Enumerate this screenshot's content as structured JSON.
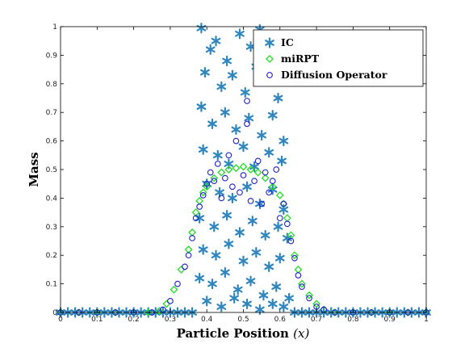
{
  "chart_data": {
    "type": "scatter",
    "title": "",
    "xlabel": "Particle Position",
    "xlabel_var": "(x)",
    "ylabel": "Mass",
    "xlim": [
      0,
      1
    ],
    "ylim": [
      0,
      1
    ],
    "xticks": [
      "0",
      "0.1",
      "0.2",
      "0.3",
      "0.4",
      "0.5",
      "0.6",
      "0.7",
      "0.8",
      "0.9",
      "1"
    ],
    "yticks": [
      "0",
      "0.1",
      "0.2",
      "0.3",
      "0.4",
      "0.5",
      "0.6",
      "0.7",
      "0.8",
      "0.9",
      "1"
    ],
    "grid": false,
    "legend_position": "top-right",
    "series": [
      {
        "name": "IC",
        "marker": "asterisk",
        "color": "#2f86bf",
        "points": [
          [
            0.0,
            0.0
          ],
          [
            0.02,
            0.0
          ],
          [
            0.04,
            0.0
          ],
          [
            0.06,
            0.0
          ],
          [
            0.08,
            0.0
          ],
          [
            0.1,
            0.0
          ],
          [
            0.12,
            0.0
          ],
          [
            0.14,
            0.0
          ],
          [
            0.16,
            0.0
          ],
          [
            0.18,
            0.0
          ],
          [
            0.2,
            0.0
          ],
          [
            0.22,
            0.0
          ],
          [
            0.24,
            0.0
          ],
          [
            0.26,
            0.0
          ],
          [
            0.28,
            0.0
          ],
          [
            0.3,
            0.0
          ],
          [
            0.32,
            0.0
          ],
          [
            0.34,
            0.0
          ],
          [
            0.36,
            0.0
          ],
          [
            0.64,
            0.0
          ],
          [
            0.66,
            0.0
          ],
          [
            0.68,
            0.0
          ],
          [
            0.7,
            0.0
          ],
          [
            0.72,
            0.0
          ],
          [
            0.74,
            0.0
          ],
          [
            0.76,
            0.0
          ],
          [
            0.78,
            0.0
          ],
          [
            0.8,
            0.0
          ],
          [
            0.82,
            0.0
          ],
          [
            0.84,
            0.0
          ],
          [
            0.86,
            0.0
          ],
          [
            0.88,
            0.0
          ],
          [
            0.9,
            0.0
          ],
          [
            0.92,
            0.0
          ],
          [
            0.94,
            0.0
          ],
          [
            0.96,
            0.0
          ],
          [
            0.98,
            0.0
          ],
          [
            1.0,
            0.0
          ],
          [
            0.385,
            0.995
          ],
          [
            0.41,
            0.92
          ],
          [
            0.425,
            0.95
          ],
          [
            0.455,
            0.88
          ],
          [
            0.49,
            0.975
          ],
          [
            0.52,
            0.93
          ],
          [
            0.545,
            0.99
          ],
          [
            0.575,
            0.91
          ],
          [
            0.6,
            0.97
          ],
          [
            0.395,
            0.84
          ],
          [
            0.44,
            0.79
          ],
          [
            0.47,
            0.83
          ],
          [
            0.505,
            0.77
          ],
          [
            0.535,
            0.86
          ],
          [
            0.565,
            0.81
          ],
          [
            0.595,
            0.75
          ],
          [
            0.385,
            0.72
          ],
          [
            0.415,
            0.66
          ],
          [
            0.45,
            0.7
          ],
          [
            0.48,
            0.64
          ],
          [
            0.515,
            0.68
          ],
          [
            0.55,
            0.62
          ],
          [
            0.58,
            0.69
          ],
          [
            0.61,
            0.6
          ],
          [
            0.39,
            0.57
          ],
          [
            0.43,
            0.55
          ],
          [
            0.46,
            0.52
          ],
          [
            0.5,
            0.58
          ],
          [
            0.53,
            0.51
          ],
          [
            0.57,
            0.56
          ],
          [
            0.605,
            0.53
          ],
          [
            0.4,
            0.45
          ],
          [
            0.435,
            0.42
          ],
          [
            0.47,
            0.4
          ],
          [
            0.51,
            0.44
          ],
          [
            0.545,
            0.38
          ],
          [
            0.58,
            0.43
          ],
          [
            0.61,
            0.36
          ],
          [
            0.38,
            0.33
          ],
          [
            0.42,
            0.3
          ],
          [
            0.455,
            0.34
          ],
          [
            0.49,
            0.28
          ],
          [
            0.525,
            0.32
          ],
          [
            0.56,
            0.27
          ],
          [
            0.595,
            0.3
          ],
          [
            0.62,
            0.26
          ],
          [
            0.39,
            0.22
          ],
          [
            0.425,
            0.2
          ],
          [
            0.46,
            0.24
          ],
          [
            0.5,
            0.18
          ],
          [
            0.535,
            0.21
          ],
          [
            0.57,
            0.16
          ],
          [
            0.6,
            0.19
          ],
          [
            0.38,
            0.12
          ],
          [
            0.415,
            0.1
          ],
          [
            0.45,
            0.14
          ],
          [
            0.485,
            0.08
          ],
          [
            0.52,
            0.11
          ],
          [
            0.555,
            0.06
          ],
          [
            0.59,
            0.09
          ],
          [
            0.625,
            0.05
          ],
          [
            0.4,
            0.04
          ],
          [
            0.44,
            0.02
          ],
          [
            0.475,
            0.05
          ],
          [
            0.51,
            0.03
          ],
          [
            0.545,
            0.01
          ],
          [
            0.58,
            0.03
          ],
          [
            0.61,
            0.02
          ]
        ]
      },
      {
        "name": "miRPT",
        "marker": "diamond",
        "color": "#22dd22",
        "points": [
          [
            0.0,
            0.0
          ],
          [
            0.05,
            0.0
          ],
          [
            0.1,
            0.0
          ],
          [
            0.15,
            0.0
          ],
          [
            0.2,
            0.0
          ],
          [
            0.24,
            0.0
          ],
          [
            0.27,
            0.005
          ],
          [
            0.29,
            0.03
          ],
          [
            0.31,
            0.08
          ],
          [
            0.33,
            0.15
          ],
          [
            0.35,
            0.22
          ],
          [
            0.36,
            0.28
          ],
          [
            0.37,
            0.35
          ],
          [
            0.38,
            0.39
          ],
          [
            0.39,
            0.42
          ],
          [
            0.4,
            0.44
          ],
          [
            0.42,
            0.47
          ],
          [
            0.44,
            0.49
          ],
          [
            0.46,
            0.5
          ],
          [
            0.48,
            0.505
          ],
          [
            0.5,
            0.51
          ],
          [
            0.52,
            0.5
          ],
          [
            0.54,
            0.49
          ],
          [
            0.56,
            0.47
          ],
          [
            0.58,
            0.44
          ],
          [
            0.6,
            0.41
          ],
          [
            0.61,
            0.38
          ],
          [
            0.62,
            0.33
          ],
          [
            0.63,
            0.27
          ],
          [
            0.64,
            0.2
          ],
          [
            0.65,
            0.15
          ],
          [
            0.66,
            0.1
          ],
          [
            0.68,
            0.06
          ],
          [
            0.7,
            0.03
          ],
          [
            0.72,
            0.01
          ],
          [
            0.75,
            0.0
          ],
          [
            0.8,
            0.0
          ],
          [
            0.85,
            0.0
          ],
          [
            0.9,
            0.0
          ],
          [
            0.95,
            0.0
          ],
          [
            1.0,
            0.0
          ]
        ]
      },
      {
        "name": "Diffusion Operator",
        "marker": "circle",
        "color": "#1f1fcc",
        "points": [
          [
            0.0,
            0.0
          ],
          [
            0.05,
            0.0
          ],
          [
            0.1,
            0.0
          ],
          [
            0.15,
            0.0
          ],
          [
            0.2,
            0.0
          ],
          [
            0.25,
            0.0
          ],
          [
            0.28,
            0.01
          ],
          [
            0.3,
            0.04
          ],
          [
            0.32,
            0.1
          ],
          [
            0.34,
            0.16
          ],
          [
            0.35,
            0.2
          ],
          [
            0.36,
            0.26
          ],
          [
            0.37,
            0.33
          ],
          [
            0.38,
            0.37
          ],
          [
            0.39,
            0.41
          ],
          [
            0.4,
            0.45
          ],
          [
            0.41,
            0.49
          ],
          [
            0.42,
            0.46
          ],
          [
            0.43,
            0.52
          ],
          [
            0.44,
            0.4
          ],
          [
            0.45,
            0.47
          ],
          [
            0.46,
            0.55
          ],
          [
            0.47,
            0.44
          ],
          [
            0.48,
            0.6
          ],
          [
            0.49,
            0.42
          ],
          [
            0.5,
            0.48
          ],
          [
            0.51,
            0.74
          ],
          [
            0.51,
            0.66
          ],
          [
            0.52,
            0.39
          ],
          [
            0.53,
            0.46
          ],
          [
            0.54,
            0.53
          ],
          [
            0.55,
            0.38
          ],
          [
            0.56,
            0.49
          ],
          [
            0.57,
            0.42
          ],
          [
            0.58,
            0.46
          ],
          [
            0.59,
            0.5
          ],
          [
            0.6,
            0.33
          ],
          [
            0.61,
            0.38
          ],
          [
            0.62,
            0.31
          ],
          [
            0.63,
            0.25
          ],
          [
            0.64,
            0.19
          ],
          [
            0.65,
            0.13
          ],
          [
            0.66,
            0.09
          ],
          [
            0.68,
            0.05
          ],
          [
            0.7,
            0.02
          ],
          [
            0.72,
            0.01
          ],
          [
            0.75,
            0.0
          ],
          [
            0.8,
            0.0
          ],
          [
            0.85,
            0.0
          ],
          [
            0.9,
            0.0
          ],
          [
            0.95,
            0.0
          ],
          [
            1.0,
            0.0
          ]
        ]
      }
    ]
  }
}
